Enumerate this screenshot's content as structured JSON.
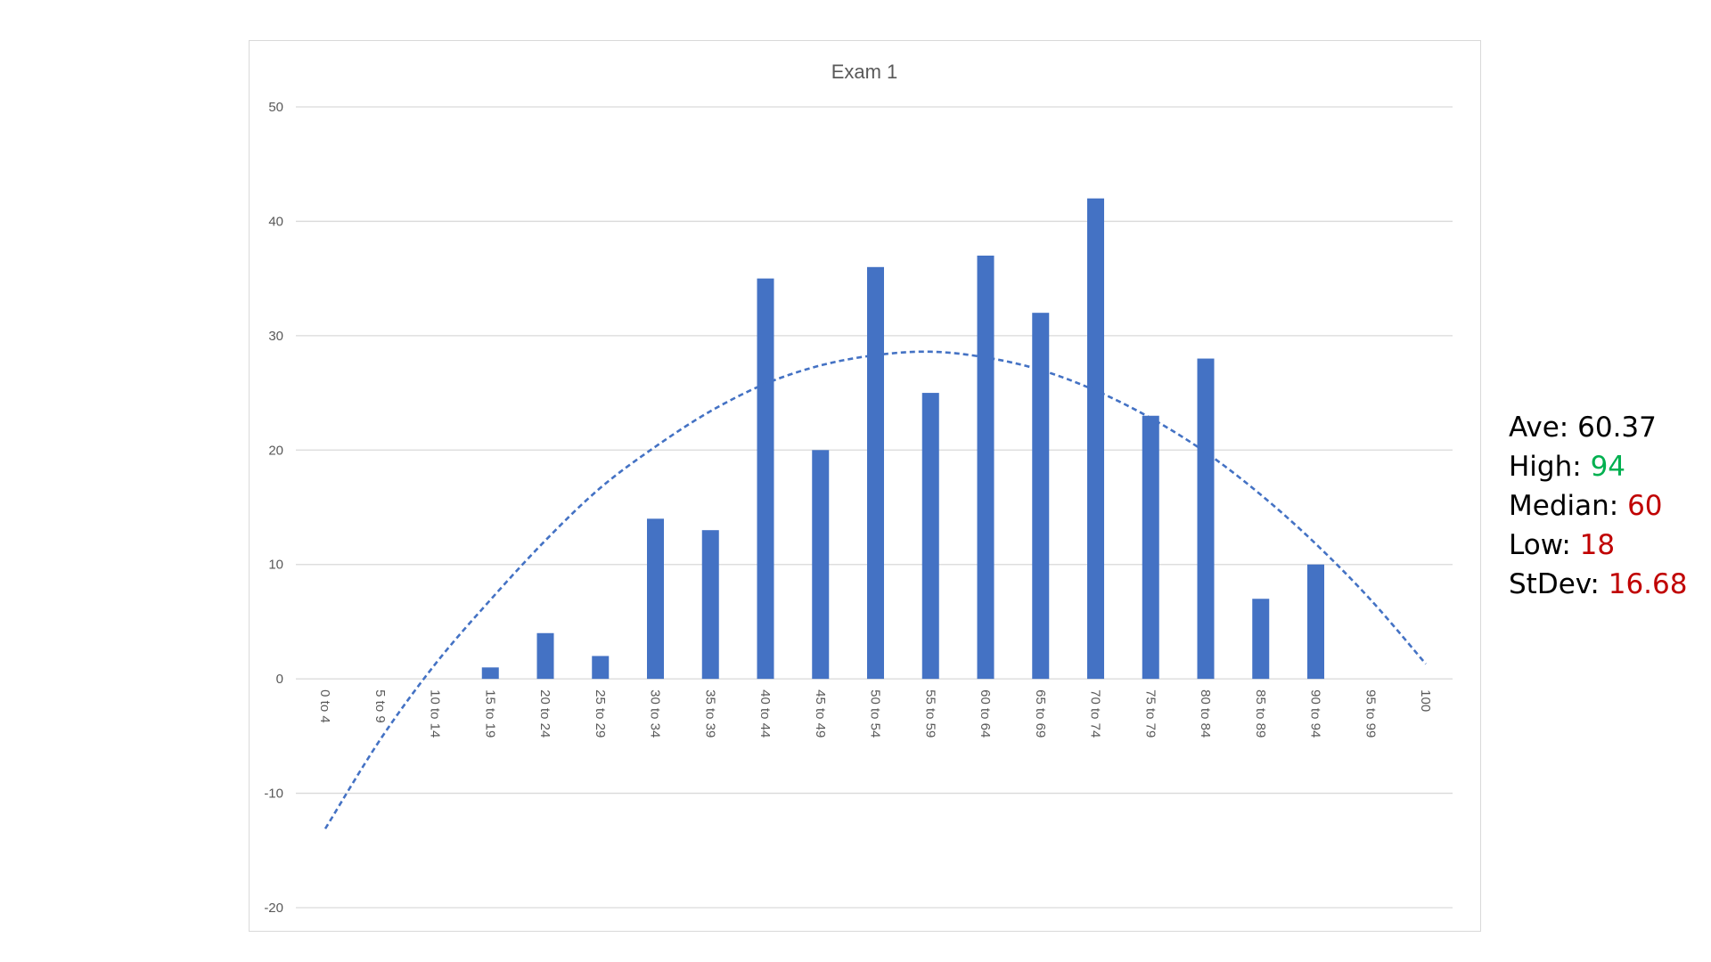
{
  "chart_data": {
    "type": "bar",
    "title": "Exam 1",
    "xlabel": "",
    "ylabel": "",
    "ylim": [
      -20,
      50
    ],
    "yticks": [
      50,
      40,
      30,
      20,
      10,
      0,
      -10,
      -20
    ],
    "grid": true,
    "legend": "none",
    "categories": [
      "0 to 4",
      "5 to 9",
      "10 to 14",
      "15 to 19",
      "20 to 24",
      "25 to 29",
      "30 to 34",
      "35 to 39",
      "40 to 44",
      "45 to 49",
      "50 to 54",
      "55 to 59",
      "60 to 64",
      "65 to 69",
      "70 to 74",
      "75 to 79",
      "80 to 84",
      "85 to 89",
      "90 to 94",
      "95 to 99",
      "100"
    ],
    "series": [
      {
        "type": "bar",
        "color": "#4472c4",
        "values": [
          0,
          0,
          0,
          1,
          4,
          2,
          14,
          13,
          35,
          20,
          36,
          25,
          37,
          32,
          42,
          23,
          28,
          7,
          10,
          0,
          0
        ]
      },
      {
        "type": "line",
        "style": "dashed",
        "color": "#4472c4",
        "values": [
          -13.1,
          -5.3,
          1.3,
          6.9,
          12.1,
          16.7,
          20.3,
          23.4,
          25.8,
          27.4,
          28.3,
          28.6,
          28.1,
          27.0,
          25.2,
          22.8,
          19.8,
          16.1,
          11.8,
          6.9,
          1.3
        ]
      }
    ]
  },
  "stats": {
    "ave_label": "Ave:",
    "ave_value": "60.37",
    "high_label": "High:",
    "high_value": "94",
    "median_label": "Median:",
    "median_value": "60",
    "low_label": "Low:",
    "low_value": "18",
    "stdev_label": "StDev:",
    "stdev_value": "16.68"
  }
}
